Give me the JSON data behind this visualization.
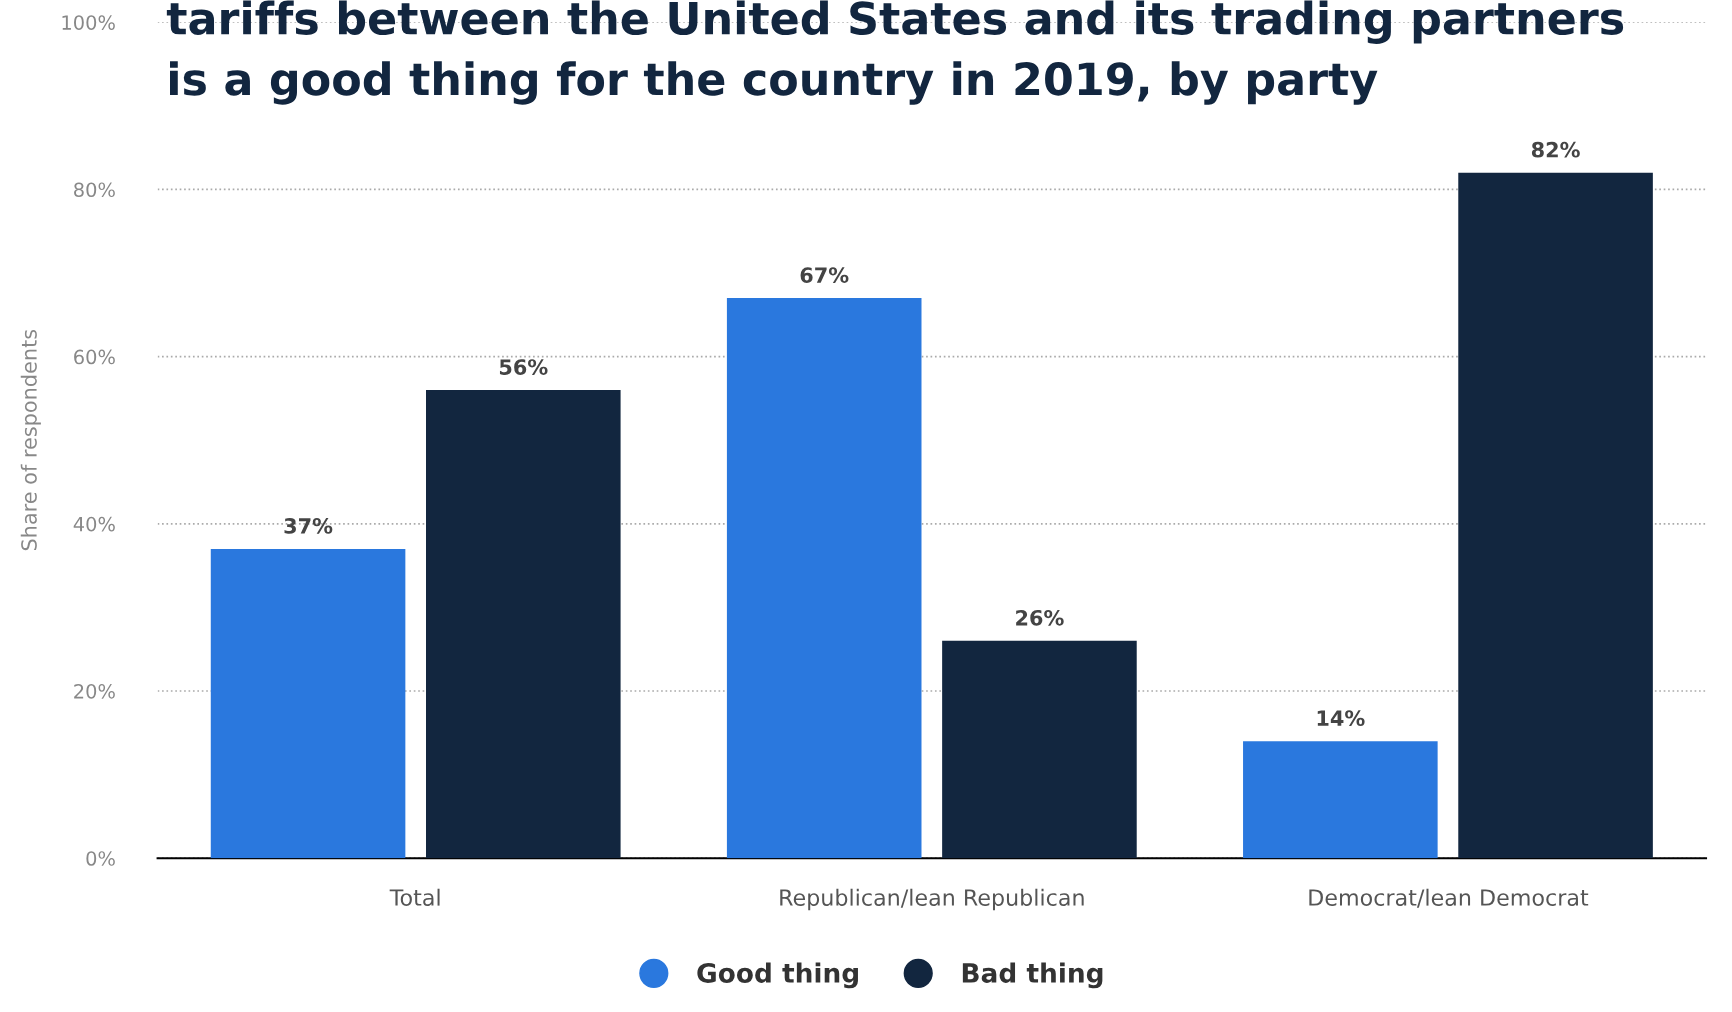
{
  "chart_data": {
    "type": "bar",
    "title": "tariffs between the United States and its trading partners is a good thing for the country in 2019, by party",
    "ylabel": "Share of respondents",
    "categories": [
      "Total",
      "Republican/lean Republican",
      "Democrat/lean Democrat"
    ],
    "series": [
      {
        "name": "Good thing",
        "color": "#2a78de",
        "values": [
          37,
          67,
          14
        ],
        "value_labels": [
          "37%",
          "67%",
          "14%"
        ]
      },
      {
        "name": "Bad thing",
        "color": "#12263f",
        "values": [
          56,
          26,
          82
        ],
        "value_labels": [
          "56%",
          "26%",
          "82%"
        ]
      }
    ],
    "ylim": [
      0,
      100
    ],
    "yticks": [
      {
        "value": 0,
        "label": "0%"
      },
      {
        "value": 20,
        "label": "20%"
      },
      {
        "value": 40,
        "label": "40%"
      },
      {
        "value": 60,
        "label": "60%"
      },
      {
        "value": 80,
        "label": "80%"
      },
      {
        "value": 100,
        "label": "100%"
      }
    ],
    "grid": "y",
    "legend": "bottom"
  }
}
